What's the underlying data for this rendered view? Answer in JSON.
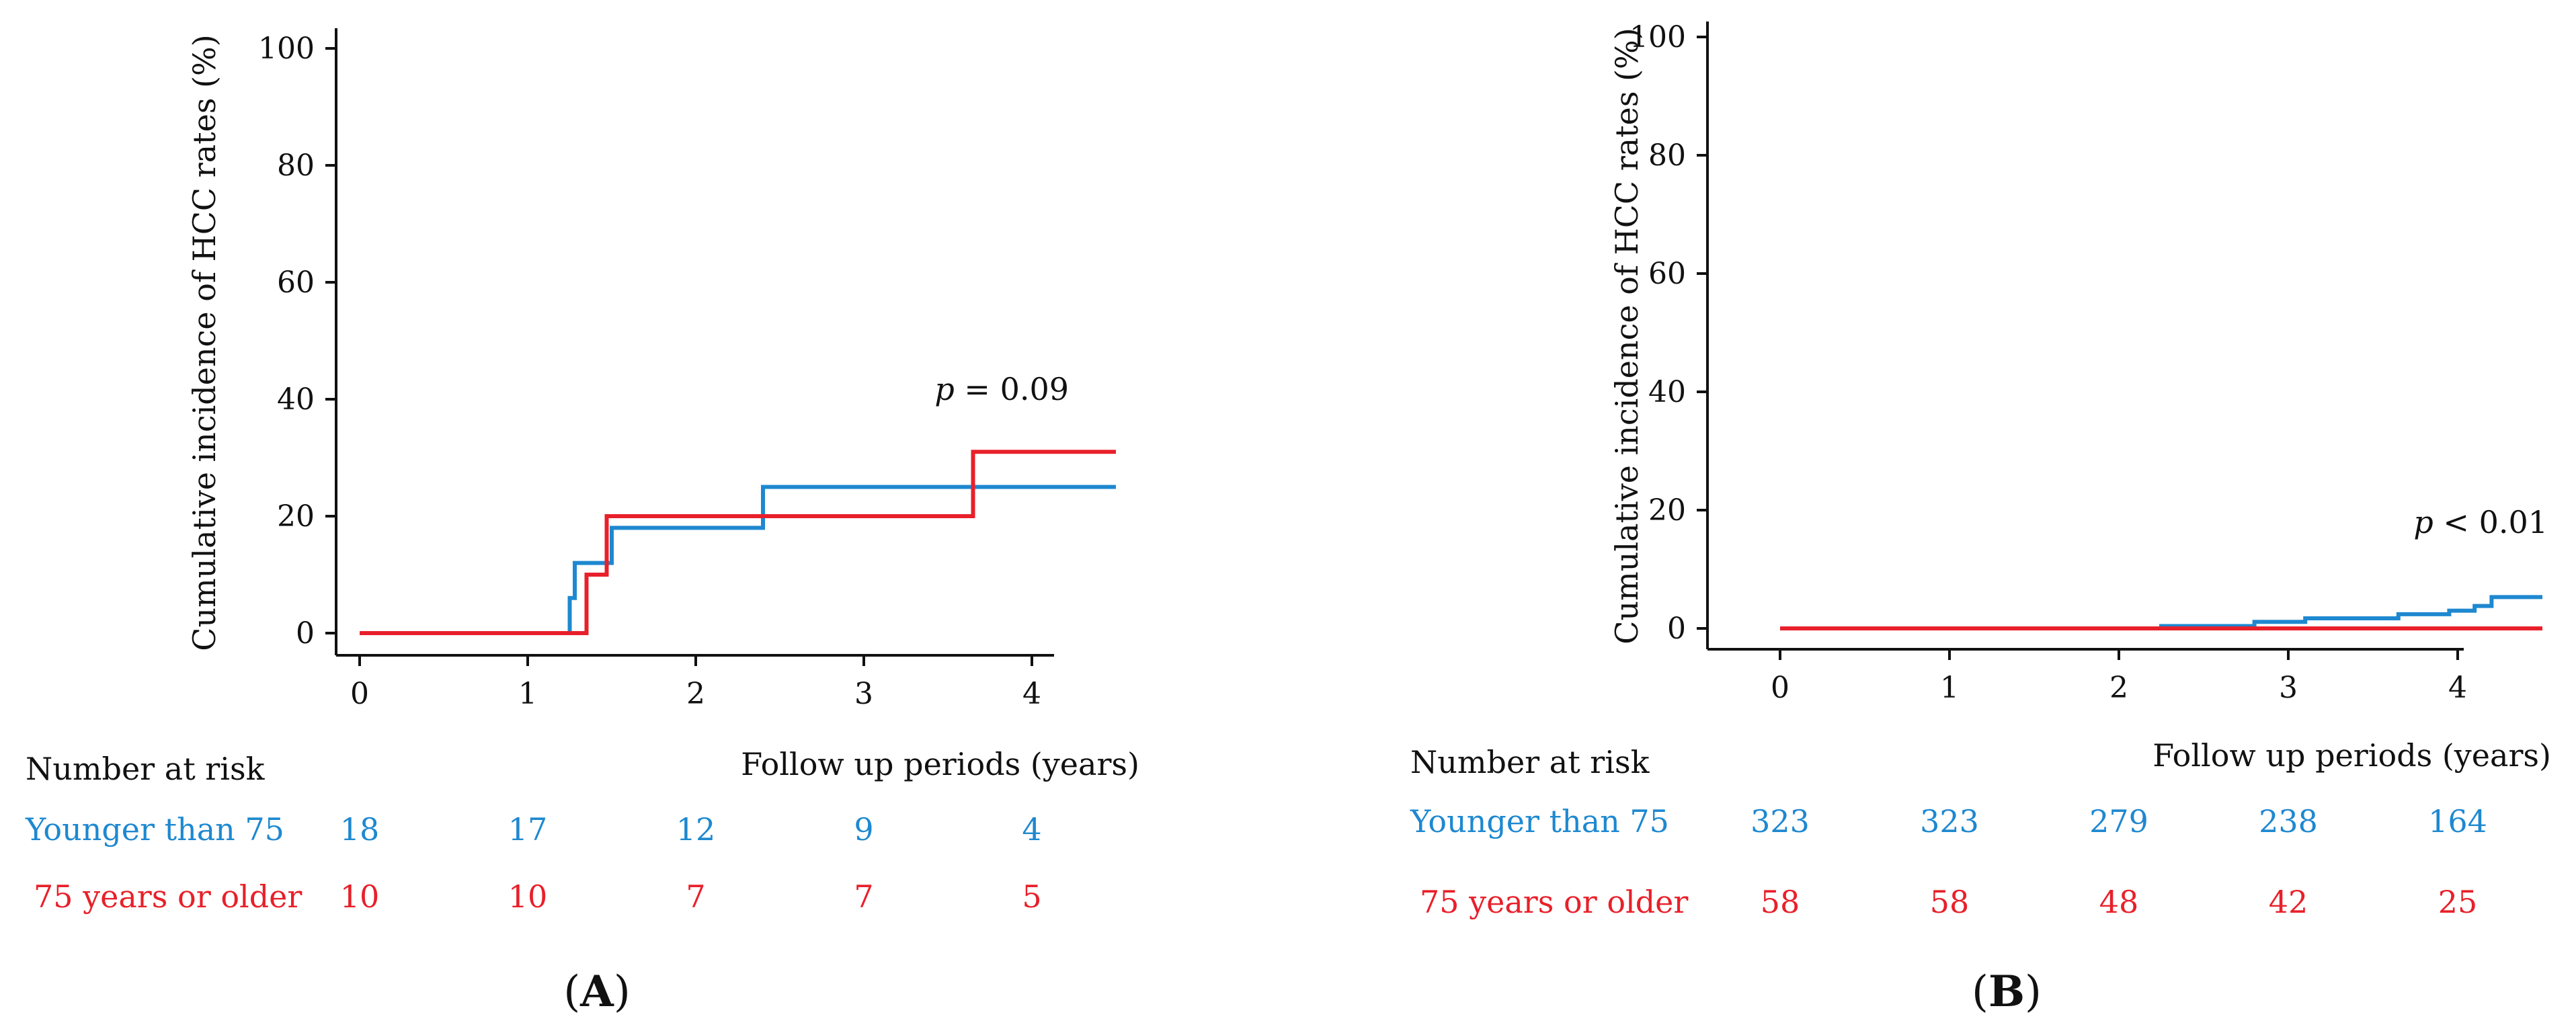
{
  "colors": {
    "younger": "#1e88d0",
    "older": "#e8202a",
    "axis": "#111111"
  },
  "chart_data": [
    {
      "type": "line",
      "panel_label": "A",
      "xlabel": "Follow up periods (years)",
      "ylabel": "Cumulative incidence of HCC rates (%)",
      "xlim": [
        0,
        4.5
      ],
      "ylim": [
        0,
        100
      ],
      "xticks": [
        0,
        1,
        2,
        3,
        4
      ],
      "yticks": [
        0,
        20,
        40,
        60,
        80,
        100
      ],
      "annotation": {
        "prefix": "p",
        "text": " = 0.09"
      },
      "series": [
        {
          "name": "Younger than 75",
          "color": "#1e88d0",
          "steps": [
            [
              0,
              0
            ],
            [
              1.25,
              0
            ],
            [
              1.25,
              6
            ],
            [
              1.28,
              6
            ],
            [
              1.28,
              12
            ],
            [
              1.5,
              12
            ],
            [
              1.5,
              18
            ],
            [
              2.4,
              18
            ],
            [
              2.4,
              25
            ],
            [
              4.5,
              25
            ]
          ]
        },
        {
          "name": "75 years or older",
          "color": "#e8202a",
          "steps": [
            [
              0,
              0
            ],
            [
              1.35,
              0
            ],
            [
              1.35,
              10
            ],
            [
              1.47,
              10
            ],
            [
              1.47,
              20
            ],
            [
              3.65,
              20
            ],
            [
              3.65,
              31
            ],
            [
              4.5,
              31
            ]
          ]
        }
      ],
      "risk_table": {
        "title": "Number at risk",
        "rows": [
          {
            "label": "Younger than 75",
            "color": "#1e88d0",
            "values": [
              "18",
              "17",
              "12",
              "9",
              "4"
            ]
          },
          {
            "label": "75 years or older",
            "color": "#e8202a",
            "values": [
              "10",
              "10",
              "7",
              "7",
              "5"
            ]
          }
        ]
      }
    },
    {
      "type": "line",
      "panel_label": "B",
      "xlabel": "Follow up periods (years)",
      "ylabel": "Cumulative incidence of HCC rates (%)",
      "xlim": [
        0,
        4.5
      ],
      "ylim": [
        0,
        100
      ],
      "xticks": [
        0,
        1,
        2,
        3,
        4
      ],
      "yticks": [
        0,
        20,
        40,
        60,
        80,
        100
      ],
      "annotation": {
        "prefix": "p",
        "text": " < 0.01"
      },
      "series": [
        {
          "name": "Younger than 75",
          "color": "#1e88d0",
          "steps": [
            [
              0,
              0
            ],
            [
              2.25,
              0
            ],
            [
              2.25,
              0.4
            ],
            [
              2.8,
              0.4
            ],
            [
              2.8,
              1.1
            ],
            [
              3.1,
              1.1
            ],
            [
              3.1,
              1.7
            ],
            [
              3.65,
              1.7
            ],
            [
              3.65,
              2.4
            ],
            [
              3.95,
              2.4
            ],
            [
              3.95,
              3.0
            ],
            [
              4.1,
              3.0
            ],
            [
              4.1,
              3.8
            ],
            [
              4.2,
              3.8
            ],
            [
              4.2,
              5.3
            ],
            [
              4.5,
              5.3
            ]
          ]
        },
        {
          "name": "75 years or older",
          "color": "#e8202a",
          "steps": [
            [
              0,
              0
            ],
            [
              4.5,
              0
            ]
          ]
        }
      ],
      "risk_table": {
        "title": "Number at risk",
        "rows": [
          {
            "label": "Younger than 75",
            "color": "#1e88d0",
            "values": [
              "323",
              "323",
              "279",
              "238",
              "164"
            ]
          },
          {
            "label": "75 years or older",
            "color": "#e8202a",
            "values": [
              "58",
              "58",
              "48",
              "42",
              "25"
            ]
          }
        ]
      }
    }
  ]
}
